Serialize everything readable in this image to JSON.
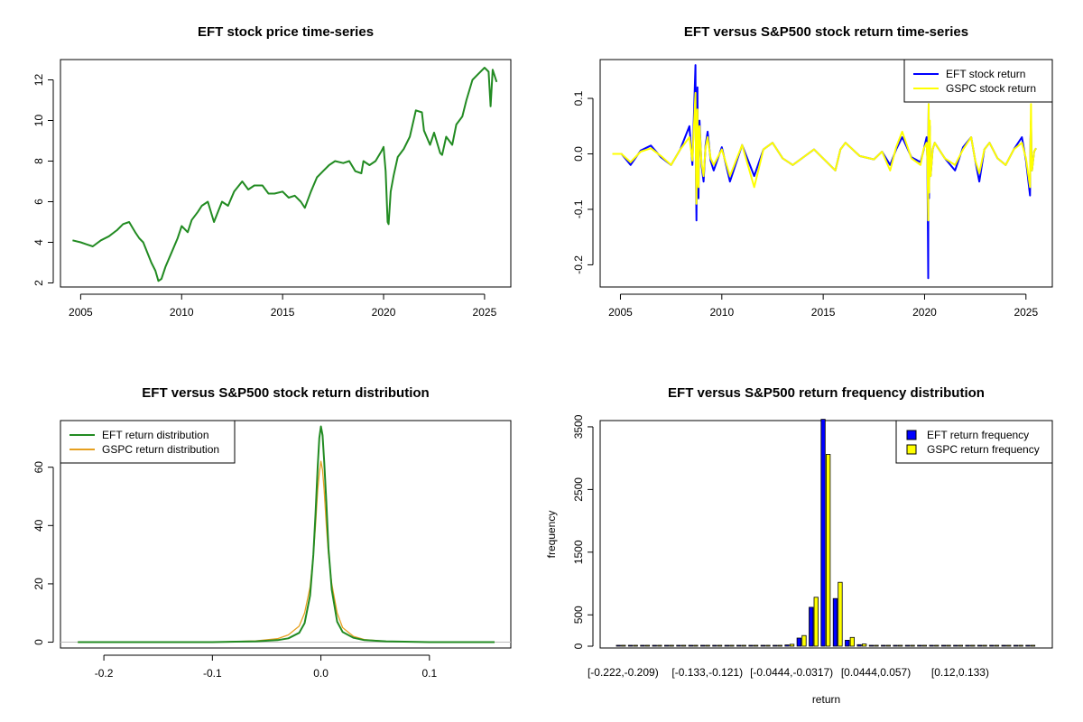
{
  "colors": {
    "eft_green": "#228b22",
    "gspc_orange": "#e6a020",
    "blue": "#0000ff",
    "yellow": "#ffff00",
    "yellow_border": "#000000",
    "zero_line": "#bbbbbb"
  },
  "chart_data": [
    {
      "id": "price",
      "type": "line",
      "title": "EFT stock price time-series",
      "xlim": [
        2004.0,
        2026.3
      ],
      "ylim": [
        1.8,
        13.0
      ],
      "xticks": [
        2005,
        2010,
        2015,
        2020,
        2025
      ],
      "xticklabels": [
        "2005",
        "2010",
        "2015",
        "2020",
        "2025"
      ],
      "yticks": [
        2,
        4,
        6,
        8,
        10,
        12
      ],
      "yticklabels": [
        "2",
        "4",
        "6",
        "8",
        "10",
        "12"
      ],
      "series": [
        {
          "color": "#228b22",
          "x": [
            2004.6,
            2005.0,
            2005.3,
            2005.6,
            2006.0,
            2006.4,
            2006.8,
            2007.1,
            2007.4,
            2007.7,
            2007.9,
            2008.1,
            2008.3,
            2008.5,
            2008.7,
            2008.85,
            2009.0,
            2009.2,
            2009.5,
            2009.8,
            2010.0,
            2010.3,
            2010.5,
            2010.8,
            2011.0,
            2011.3,
            2011.6,
            2011.8,
            2012.0,
            2012.3,
            2012.6,
            2013.0,
            2013.3,
            2013.6,
            2014.0,
            2014.3,
            2014.6,
            2015.0,
            2015.3,
            2015.6,
            2015.9,
            2016.1,
            2016.4,
            2016.7,
            2017.0,
            2017.3,
            2017.6,
            2018.0,
            2018.3,
            2018.6,
            2018.9,
            2019.0,
            2019.3,
            2019.6,
            2019.9,
            2020.0,
            2020.1,
            2020.2,
            2020.25,
            2020.35,
            2020.5,
            2020.7,
            2021.0,
            2021.3,
            2021.6,
            2021.9,
            2022.0,
            2022.3,
            2022.5,
            2022.8,
            2022.9,
            2023.1,
            2023.4,
            2023.6,
            2023.9,
            2024.1,
            2024.4,
            2024.7,
            2025.0,
            2025.2,
            2025.3,
            2025.4,
            2025.6
          ],
          "y": [
            4.1,
            4.0,
            3.9,
            3.8,
            4.1,
            4.3,
            4.6,
            4.9,
            5.0,
            4.5,
            4.2,
            4.0,
            3.5,
            3.0,
            2.6,
            2.1,
            2.2,
            2.8,
            3.5,
            4.2,
            4.8,
            4.5,
            5.1,
            5.5,
            5.8,
            6.0,
            5.0,
            5.5,
            6.0,
            5.8,
            6.5,
            7.0,
            6.6,
            6.8,
            6.8,
            6.4,
            6.4,
            6.5,
            6.2,
            6.3,
            6.0,
            5.7,
            6.5,
            7.2,
            7.5,
            7.8,
            8.0,
            7.9,
            8.0,
            7.5,
            7.4,
            8.0,
            7.8,
            8.0,
            8.5,
            8.7,
            7.5,
            5.0,
            4.9,
            6.5,
            7.3,
            8.2,
            8.6,
            9.2,
            10.5,
            10.4,
            9.5,
            8.8,
            9.4,
            8.4,
            8.3,
            9.2,
            8.8,
            9.8,
            10.2,
            11.0,
            12.0,
            12.3,
            12.6,
            12.4,
            10.7,
            12.5,
            11.9
          ]
        }
      ]
    },
    {
      "id": "returns",
      "type": "line",
      "title": "EFT versus S&P500 stock return time-series",
      "xlim": [
        2004.0,
        2026.3
      ],
      "ylim": [
        -0.24,
        0.17
      ],
      "xticks": [
        2005,
        2010,
        2015,
        2020,
        2025
      ],
      "xticklabels": [
        "2005",
        "2010",
        "2015",
        "2020",
        "2025"
      ],
      "yticks": [
        -0.2,
        -0.1,
        0.0,
        0.1
      ],
      "yticklabels": [
        "-0.2",
        "-0.1",
        "0.0",
        "0.1"
      ],
      "legend_position": "top-right",
      "series": [
        {
          "name": "EFT stock return",
          "color": "#0000ff",
          "x": [
            2004.6,
            2005.5,
            2006.5,
            2007.5,
            2008.4,
            2008.7,
            2008.75,
            2008.8,
            2008.85,
            2008.9,
            2009.1,
            2009.3,
            2009.6,
            2010.4,
            2011.6,
            2012.5,
            2013.5,
            2015.6,
            2016.1,
            2017.5,
            2018.3,
            2018.9,
            2019.8,
            2020.1,
            2020.18,
            2020.2,
            2020.22,
            2020.26,
            2020.3,
            2020.5,
            2021.5,
            2022.3,
            2022.7,
            2023.2,
            2024.0,
            2024.8,
            2025.2,
            2025.25,
            2025.3,
            2025.5
          ],
          "y": [
            0.0,
            -0.02,
            0.015,
            -0.02,
            0.05,
            0.16,
            -0.12,
            0.12,
            -0.08,
            0.06,
            -0.05,
            0.04,
            -0.03,
            -0.05,
            -0.04,
            0.02,
            -0.02,
            -0.03,
            0.02,
            -0.01,
            -0.02,
            0.03,
            -0.015,
            0.03,
            -0.224,
            0.09,
            -0.08,
            0.05,
            -0.04,
            0.02,
            -0.03,
            0.03,
            -0.05,
            0.02,
            -0.02,
            0.03,
            -0.075,
            0.06,
            -0.03,
            0.01
          ]
        },
        {
          "name": "GSPC stock return",
          "color": "#ffff00",
          "x": [
            2004.6,
            2005.5,
            2006.5,
            2007.5,
            2008.4,
            2008.7,
            2008.75,
            2008.8,
            2008.85,
            2008.9,
            2009.1,
            2009.3,
            2009.6,
            2010.4,
            2011.6,
            2012.5,
            2013.5,
            2015.6,
            2016.1,
            2017.5,
            2018.3,
            2018.9,
            2019.8,
            2020.1,
            2020.18,
            2020.2,
            2020.22,
            2020.26,
            2020.3,
            2020.5,
            2021.5,
            2022.3,
            2022.7,
            2023.2,
            2024.0,
            2024.8,
            2025.2,
            2025.25,
            2025.3,
            2025.5
          ],
          "y": [
            0.0,
            -0.015,
            0.01,
            -0.02,
            0.03,
            0.11,
            -0.09,
            0.08,
            -0.06,
            0.05,
            -0.04,
            0.03,
            -0.02,
            -0.04,
            -0.06,
            0.02,
            -0.02,
            -0.03,
            0.02,
            -0.01,
            -0.03,
            0.04,
            -0.02,
            0.02,
            -0.12,
            0.09,
            -0.07,
            0.06,
            -0.04,
            0.02,
            -0.02,
            0.03,
            -0.035,
            0.02,
            -0.02,
            0.02,
            -0.06,
            0.09,
            -0.03,
            0.01
          ]
        }
      ]
    },
    {
      "id": "density",
      "type": "line",
      "title": "EFT versus S&P500 stock return distribution",
      "xlim": [
        -0.24,
        0.175
      ],
      "ylim": [
        -2,
        76
      ],
      "xticks": [
        -0.2,
        -0.1,
        0.0,
        0.1
      ],
      "xticklabels": [
        "-0.2",
        "-0.1",
        "0.0",
        "0.1"
      ],
      "yticks": [
        0,
        20,
        40,
        60
      ],
      "yticklabels": [
        "0",
        "20",
        "40",
        "60"
      ],
      "legend_position": "top-left",
      "series": [
        {
          "name": "EFT return distribution",
          "color": "#228b22",
          "x": [
            -0.224,
            -0.1,
            -0.06,
            -0.04,
            -0.03,
            -0.02,
            -0.015,
            -0.01,
            -0.007,
            -0.005,
            -0.003,
            -0.0015,
            0.0,
            0.0015,
            0.003,
            0.005,
            0.007,
            0.01,
            0.015,
            0.02,
            0.03,
            0.04,
            0.06,
            0.1,
            0.16
          ],
          "y": [
            0,
            0,
            0.3,
            0.7,
            1.3,
            3.2,
            6.5,
            16,
            30,
            44,
            60,
            70,
            74,
            71,
            62,
            48,
            32,
            18,
            7,
            3.5,
            1.5,
            0.7,
            0.3,
            0,
            0
          ]
        },
        {
          "name": "GSPC return distribution",
          "color": "#e6a020",
          "x": [
            -0.224,
            -0.1,
            -0.06,
            -0.04,
            -0.03,
            -0.02,
            -0.015,
            -0.01,
            -0.007,
            -0.005,
            -0.003,
            -0.0015,
            0.0,
            0.0015,
            0.003,
            0.005,
            0.007,
            0.01,
            0.015,
            0.02,
            0.03,
            0.04,
            0.06,
            0.1,
            0.16
          ],
          "y": [
            0,
            0,
            0.4,
            1.2,
            2.5,
            5.5,
            10,
            19,
            30,
            40,
            52,
            58,
            62,
            59,
            52,
            40,
            30,
            20,
            10,
            5,
            2,
            0.9,
            0.3,
            0,
            0
          ]
        }
      ]
    },
    {
      "id": "frequency",
      "type": "bar",
      "title": "EFT versus S&P500 return frequency distribution",
      "xlabel": "return",
      "ylabel": "frequency",
      "ylim": [
        0,
        3600
      ],
      "yticks": [
        0,
        500,
        1500,
        2500,
        3500
      ],
      "yticklabels": [
        "0",
        "500",
        "1500",
        "2500",
        "3500"
      ],
      "xticklabels": [
        "[-0.222,-0.209)",
        "[-0.133,-0.121)",
        "[-0.0444,-0.0317)",
        "[0.0444,0.057)",
        "[0.12,0.133)"
      ],
      "xtick_category_index": [
        0,
        7,
        14,
        21,
        28
      ],
      "legend_position": "top-right",
      "series": [
        {
          "name": "EFT return frequency",
          "color": "#0000ff",
          "values": [
            1,
            0,
            0,
            0,
            0,
            0,
            0,
            0,
            0,
            0,
            0,
            2,
            3,
            6,
            20,
            130,
            620,
            3620,
            760,
            95,
            25,
            10,
            5,
            3,
            2,
            1,
            1,
            1,
            0,
            0,
            0,
            0,
            0,
            1,
            0
          ]
        },
        {
          "name": "GSPC return frequency",
          "color": "#ffff00",
          "values": [
            0,
            0,
            0,
            0,
            0,
            0,
            0,
            0,
            0,
            0,
            0,
            1,
            3,
            8,
            30,
            170,
            780,
            3060,
            1020,
            140,
            35,
            12,
            6,
            3,
            2,
            1,
            1,
            0,
            0,
            0,
            0,
            0,
            0,
            1,
            0
          ]
        }
      ]
    }
  ]
}
